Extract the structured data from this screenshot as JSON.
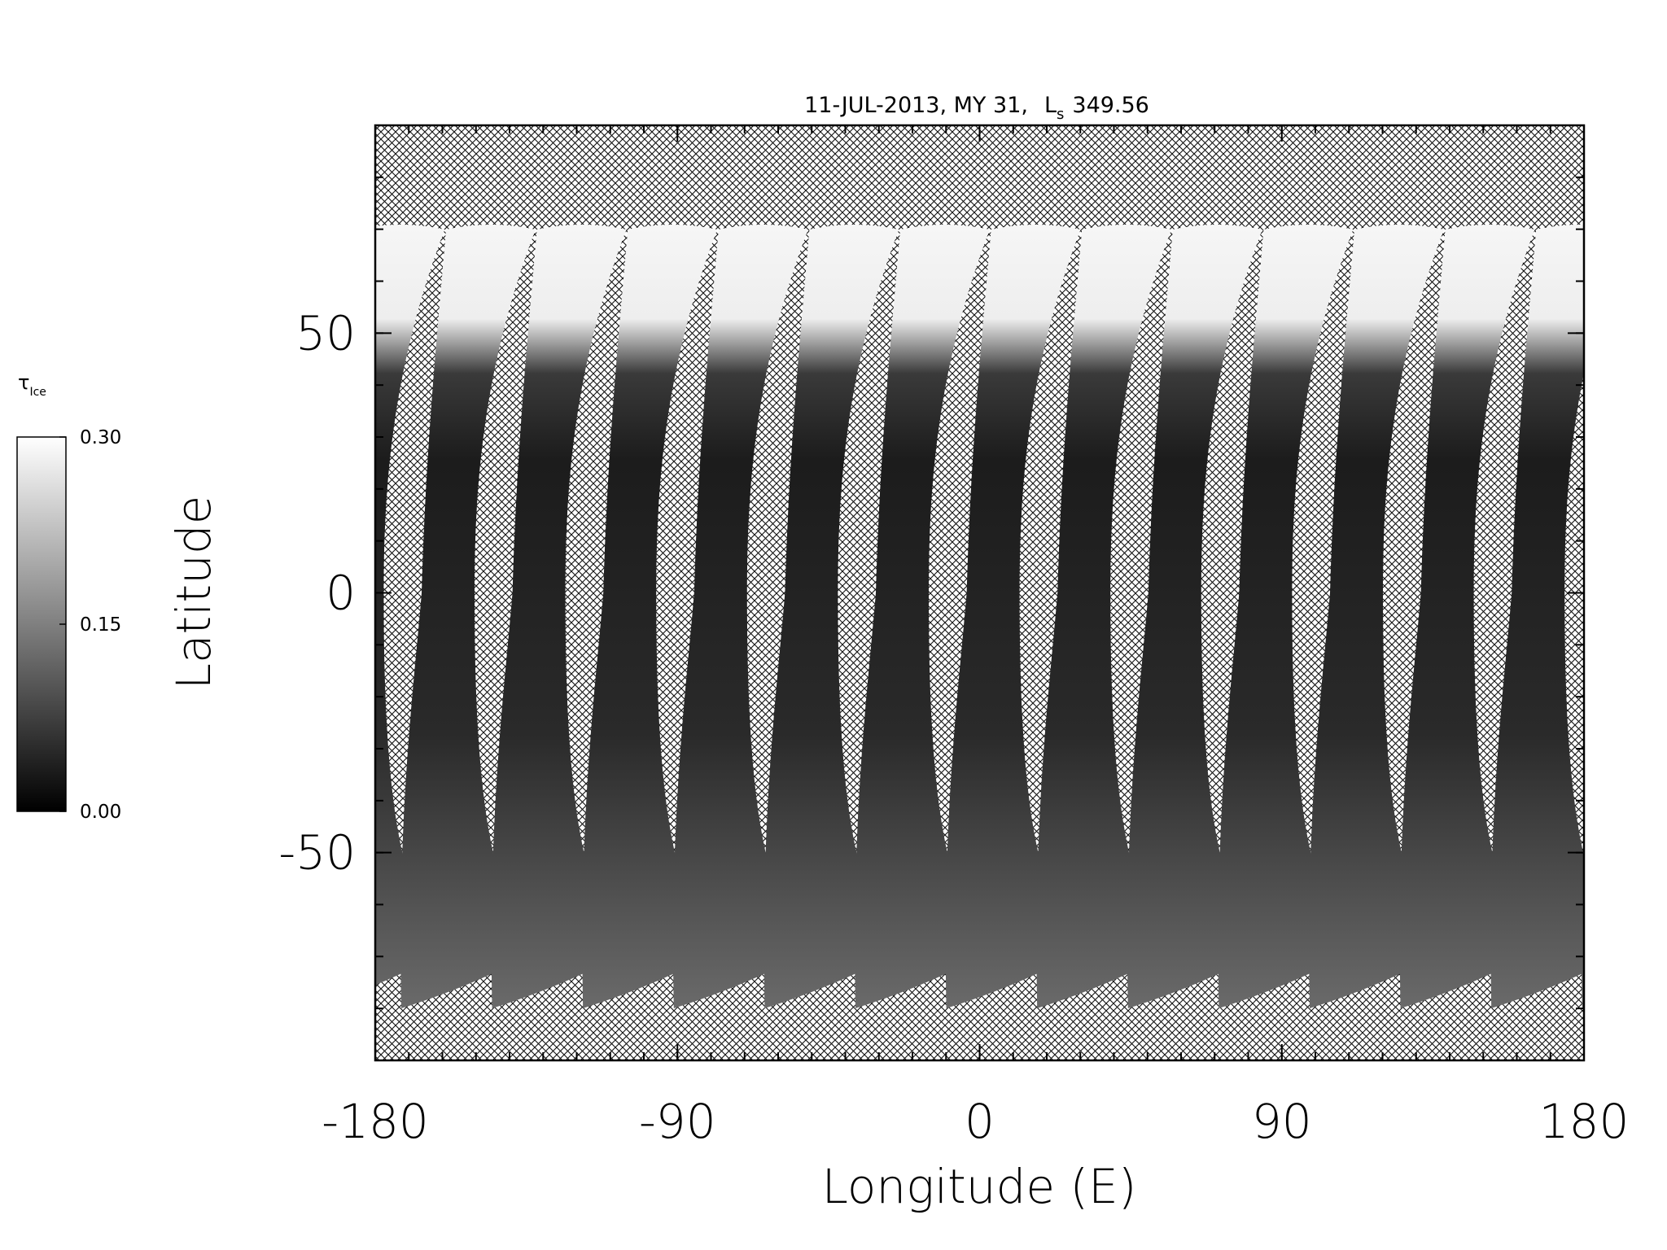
{
  "chart_data": {
    "type": "map",
    "title": {
      "text": "11-JUL-2013, MY 31,",
      "symbol": "L",
      "subscript": "s",
      "value": "349.56"
    },
    "xlabel": "Longitude (E)",
    "ylabel": "Latitude",
    "xlim": [
      -180,
      180
    ],
    "xticks": [
      -180,
      -90,
      0,
      90,
      180
    ],
    "ylim": [
      -90,
      90
    ],
    "yticks": [
      -50,
      0,
      50
    ],
    "minor_tick_step": 10,
    "colorbar": {
      "symbol": "τ",
      "subscript": "Ice",
      "lim": [
        0,
        0.3
      ],
      "ticks": [
        {
          "value": 0,
          "label": "0.00"
        },
        {
          "value": 0.15,
          "label": "0.15"
        },
        {
          "value": 0.3,
          "label": "0.30"
        }
      ]
    }
  }
}
